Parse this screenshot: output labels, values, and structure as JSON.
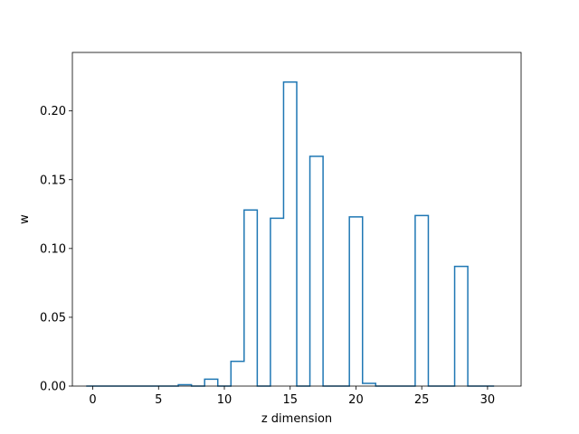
{
  "chart_data": {
    "type": "bar",
    "style": "step-histogram",
    "xlabel": "z dimension",
    "ylabel": "w",
    "xlim": [
      -1.55,
      32.55
    ],
    "ylim": [
      0.0,
      0.2425
    ],
    "xticks": [
      0,
      5,
      10,
      15,
      20,
      25,
      30
    ],
    "yticks": [
      0.0,
      0.05,
      0.1,
      0.15,
      0.2
    ],
    "ytick_labels": [
      "0.00",
      "0.05",
      "0.10",
      "0.15",
      "0.20"
    ],
    "grid": false,
    "color": "#1f77b4",
    "bins": [
      {
        "x": 0,
        "value": 0.0
      },
      {
        "x": 1,
        "value": 0.0
      },
      {
        "x": 2,
        "value": 0.0
      },
      {
        "x": 3,
        "value": 0.0
      },
      {
        "x": 4,
        "value": 0.0
      },
      {
        "x": 5,
        "value": 0.0
      },
      {
        "x": 6,
        "value": 0.0
      },
      {
        "x": 7,
        "value": 0.001
      },
      {
        "x": 8,
        "value": 0.0
      },
      {
        "x": 9,
        "value": 0.005
      },
      {
        "x": 10,
        "value": 0.0
      },
      {
        "x": 11,
        "value": 0.018
      },
      {
        "x": 12,
        "value": 0.128
      },
      {
        "x": 13,
        "value": 0.0
      },
      {
        "x": 14,
        "value": 0.122
      },
      {
        "x": 15,
        "value": 0.221
      },
      {
        "x": 16,
        "value": 0.0
      },
      {
        "x": 17,
        "value": 0.167
      },
      {
        "x": 18,
        "value": 0.0
      },
      {
        "x": 19,
        "value": 0.0
      },
      {
        "x": 20,
        "value": 0.123
      },
      {
        "x": 21,
        "value": 0.002
      },
      {
        "x": 22,
        "value": 0.0
      },
      {
        "x": 23,
        "value": 0.0
      },
      {
        "x": 24,
        "value": 0.0
      },
      {
        "x": 25,
        "value": 0.124
      },
      {
        "x": 26,
        "value": 0.0
      },
      {
        "x": 27,
        "value": 0.0
      },
      {
        "x": 28,
        "value": 0.087
      },
      {
        "x": 29,
        "value": 0.0
      },
      {
        "x": 30,
        "value": 0.0
      }
    ]
  }
}
